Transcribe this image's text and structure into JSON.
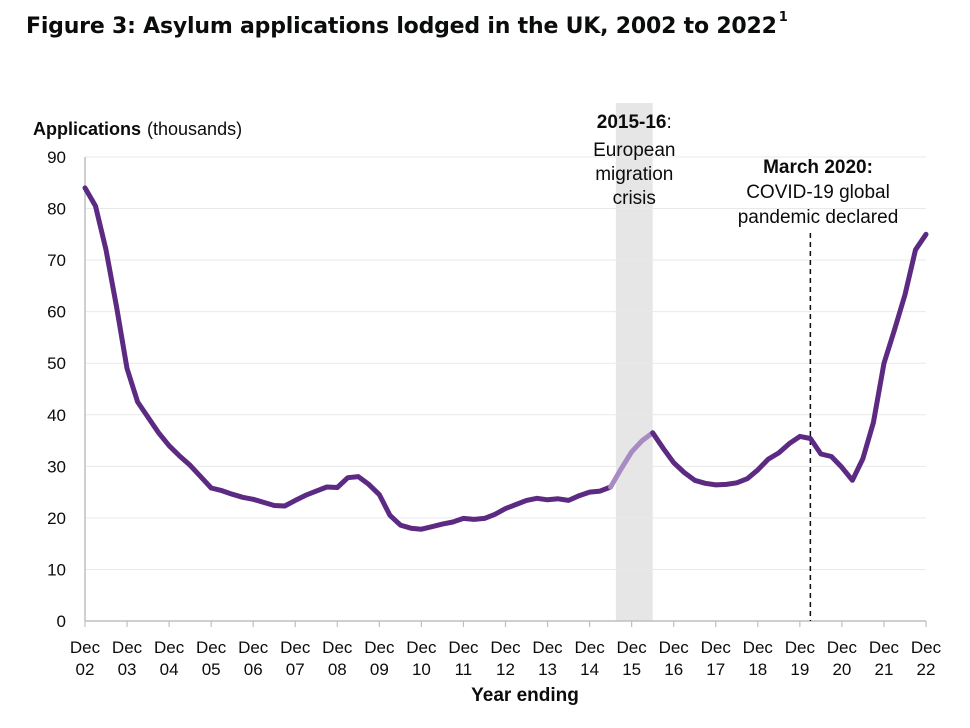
{
  "title": "Figure 3: Asylum applications lodged in the UK, 2002 to 2022",
  "title_footnote": "1",
  "colors": {
    "line": "#5c2a82",
    "highlight_line": "#a98bc4",
    "shade": "#e6e6e6",
    "grid": "#e9e9e9",
    "text": "#0b0c0c"
  },
  "chart_data": {
    "type": "line",
    "ylabel_bold": "Applications",
    "ylabel_rest": "(thousands)",
    "xlabel": "Year ending",
    "ylim": [
      0,
      90
    ],
    "yticks": [
      0,
      10,
      20,
      30,
      40,
      50,
      60,
      70,
      80,
      90
    ],
    "grid": true,
    "xticks": [
      {
        "month": "Dec",
        "year": "02"
      },
      {
        "month": "Dec",
        "year": "03"
      },
      {
        "month": "Dec",
        "year": "04"
      },
      {
        "month": "Dec",
        "year": "05"
      },
      {
        "month": "Dec",
        "year": "06"
      },
      {
        "month": "Dec",
        "year": "07"
      },
      {
        "month": "Dec",
        "year": "08"
      },
      {
        "month": "Dec",
        "year": "09"
      },
      {
        "month": "Dec",
        "year": "10"
      },
      {
        "month": "Dec",
        "year": "11"
      },
      {
        "month": "Dec",
        "year": "12"
      },
      {
        "month": "Dec",
        "year": "13"
      },
      {
        "month": "Dec",
        "year": "14"
      },
      {
        "month": "Dec",
        "year": "15"
      },
      {
        "month": "Dec",
        "year": "16"
      },
      {
        "month": "Dec",
        "year": "17"
      },
      {
        "month": "Dec",
        "year": "18"
      },
      {
        "month": "Dec",
        "year": "19"
      },
      {
        "month": "Dec",
        "year": "20"
      },
      {
        "month": "Dec",
        "year": "21"
      },
      {
        "month": "Dec",
        "year": "22"
      }
    ],
    "x_start": "Dec 02",
    "x_end": "Dec 22",
    "x_unit": "quarters",
    "values": [
      84,
      80.5,
      72,
      61,
      49,
      42.5,
      39.5,
      36.5,
      34,
      32,
      30.2,
      28,
      25.8,
      25.3,
      24.6,
      24,
      23.6,
      23,
      22.4,
      22.3,
      23.4,
      24.4,
      25.2,
      26,
      25.9,
      27.8,
      28,
      26.5,
      24.5,
      20.5,
      18.6,
      18,
      17.8,
      18.3,
      18.8,
      19.2,
      19.9,
      19.7,
      19.9,
      20.7,
      21.8,
      22.6,
      23.4,
      23.8,
      23.5,
      23.7,
      23.4,
      24.3,
      25,
      25.2,
      26,
      29.5,
      32.8,
      35,
      36.5,
      33.5,
      30.7,
      28.8,
      27.3,
      26.7,
      26.4,
      26.5,
      26.8,
      27.6,
      29.3,
      31.4,
      32.6,
      34.4,
      35.8,
      35.4,
      32.4,
      31.9,
      29.8,
      27.3,
      31.5,
      38.5,
      50,
      56.5,
      63.3,
      72,
      75
    ],
    "highlight": {
      "from_index": 50,
      "to_index": 54
    },
    "shaded_period": {
      "from": "Q3 2015",
      "to": "Q2 2016",
      "from_index": 51,
      "to_index": 54
    },
    "vline": {
      "at": "March 2020",
      "at_index": 69
    },
    "annotations": [
      {
        "id": "crisis",
        "bold": "2015-16",
        "suffix": ":",
        "lines": [
          "European",
          "migration",
          "crisis"
        ]
      },
      {
        "id": "covid",
        "bold": "March 2020:",
        "lines": [
          "COVID-19 global",
          "pandemic declared"
        ]
      }
    ]
  }
}
